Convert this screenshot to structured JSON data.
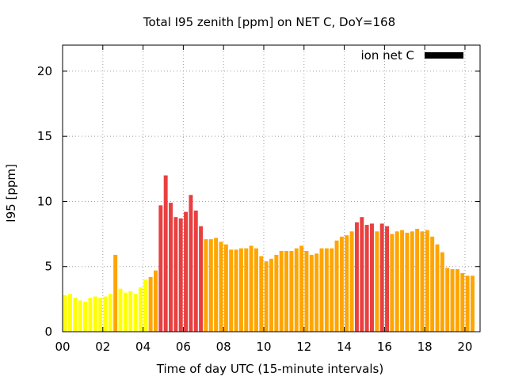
{
  "chart_data": {
    "type": "bar",
    "title": "Total I95 zenith [ppm] on NET C, DoY=168",
    "xlabel": "Time of day UTC (15-minute intervals)",
    "ylabel": "I95 [ppm]",
    "xlim": [
      0,
      20.75
    ],
    "ylim": [
      0,
      22
    ],
    "x_ticks": [
      {
        "value": 0,
        "label": "00"
      },
      {
        "value": 2,
        "label": "02"
      },
      {
        "value": 4,
        "label": "04"
      },
      {
        "value": 6,
        "label": "06"
      },
      {
        "value": 8,
        "label": "08"
      },
      {
        "value": 10,
        "label": "10"
      },
      {
        "value": 12,
        "label": "12"
      },
      {
        "value": 14,
        "label": "14"
      },
      {
        "value": 16,
        "label": "16"
      },
      {
        "value": 18,
        "label": "18"
      },
      {
        "value": 20,
        "label": "20"
      }
    ],
    "y_ticks": [
      {
        "value": 0,
        "label": "0"
      },
      {
        "value": 5,
        "label": "5"
      },
      {
        "value": 10,
        "label": "10"
      },
      {
        "value": 15,
        "label": "15"
      },
      {
        "value": 20,
        "label": "20"
      }
    ],
    "grid": true,
    "legend": {
      "position": "top-right",
      "label": "ion net C",
      "color": "#000000"
    },
    "interval_hours": 0.25,
    "level_colors": {
      "low": "#ffff00",
      "moderate": "#ffa500",
      "high": "#e84040"
    },
    "values": [
      2.8,
      2.9,
      2.6,
      2.4,
      2.3,
      2.6,
      2.7,
      2.6,
      2.7,
      2.9,
      5.9,
      3.3,
      3.0,
      3.1,
      2.9,
      3.4,
      4.0,
      4.2,
      4.7,
      9.7,
      12.0,
      9.9,
      8.8,
      8.7,
      9.2,
      10.5,
      9.3,
      8.1,
      7.1,
      7.1,
      7.2,
      6.9,
      6.7,
      6.3,
      6.3,
      6.4,
      6.4,
      6.6,
      6.4,
      5.8,
      5.4,
      5.6,
      5.9,
      6.2,
      6.2,
      6.2,
      6.4,
      6.6,
      6.2,
      5.9,
      6.0,
      6.4,
      6.4,
      6.4,
      7.0,
      7.3,
      7.4,
      7.7,
      8.4,
      8.8,
      8.2,
      8.3,
      7.7,
      8.3,
      8.1,
      7.5,
      7.7,
      7.8,
      7.6,
      7.7,
      7.9,
      7.7,
      7.8,
      7.3,
      6.7,
      6.1,
      4.9,
      4.8,
      4.8,
      4.5,
      4.3,
      4.3
    ],
    "levels": [
      "low",
      "low",
      "low",
      "low",
      "low",
      "low",
      "low",
      "low",
      "low",
      "low",
      "moderate",
      "low",
      "low",
      "low",
      "low",
      "low",
      "low",
      "moderate",
      "moderate",
      "high",
      "high",
      "high",
      "high",
      "high",
      "high",
      "high",
      "high",
      "high",
      "moderate",
      "moderate",
      "moderate",
      "moderate",
      "moderate",
      "moderate",
      "moderate",
      "moderate",
      "moderate",
      "moderate",
      "moderate",
      "moderate",
      "moderate",
      "moderate",
      "moderate",
      "moderate",
      "moderate",
      "moderate",
      "moderate",
      "moderate",
      "moderate",
      "moderate",
      "moderate",
      "moderate",
      "moderate",
      "moderate",
      "moderate",
      "moderate",
      "moderate",
      "moderate",
      "high",
      "high",
      "high",
      "high",
      "moderate",
      "high",
      "high",
      "moderate",
      "moderate",
      "moderate",
      "moderate",
      "moderate",
      "moderate",
      "moderate",
      "moderate",
      "moderate",
      "moderate",
      "moderate",
      "moderate",
      "moderate",
      "moderate",
      "moderate",
      "moderate",
      "moderate"
    ]
  }
}
